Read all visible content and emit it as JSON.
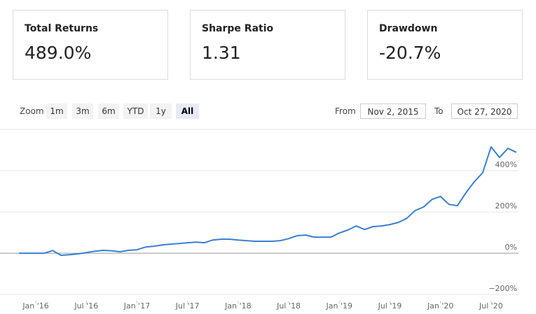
{
  "metrics": [
    {
      "label": "Total Returns",
      "value": "489.0%"
    },
    {
      "label": "Sharpe Ratio",
      "value": "1.31"
    },
    {
      "label": "Drawdown",
      "value": "-20.7%"
    }
  ],
  "toolbar": {
    "zoom_label": "Zoom",
    "zoom_buttons": [
      "1m",
      "3m",
      "6m",
      "YTD",
      "1y",
      "All"
    ],
    "selected_index": 5,
    "from_label": "From",
    "from_date": "Nov 2, 2015",
    "to_label": "To",
    "to_date": "Oct 27, 2020"
  },
  "chart_data": {
    "type": "line",
    "color": "#3a7fd5",
    "x": [
      "2015-11",
      "2015-12",
      "2016-01",
      "2016-02",
      "2016-03",
      "2016-04",
      "2016-05",
      "2016-06",
      "2016-07",
      "2016-08",
      "2016-09",
      "2016-10",
      "2016-11",
      "2016-12",
      "2017-01",
      "2017-02",
      "2017-03",
      "2017-04",
      "2017-05",
      "2017-06",
      "2017-07",
      "2017-08",
      "2017-09",
      "2017-10",
      "2017-11",
      "2017-12",
      "2018-01",
      "2018-02",
      "2018-03",
      "2018-04",
      "2018-05",
      "2018-06",
      "2018-07",
      "2018-08",
      "2018-09",
      "2018-10",
      "2018-11",
      "2018-12",
      "2019-01",
      "2019-02",
      "2019-03",
      "2019-04",
      "2019-05",
      "2019-06",
      "2019-07",
      "2019-08",
      "2019-09",
      "2019-10",
      "2019-11",
      "2019-12",
      "2020-01",
      "2020-02",
      "2020-03",
      "2020-04",
      "2020-05",
      "2020-06",
      "2020-07",
      "2020-08",
      "2020-09",
      "2020-10"
    ],
    "values": [
      0,
      0,
      0,
      0,
      13,
      -10,
      -7,
      -3,
      3,
      10,
      14,
      12,
      7,
      14,
      17,
      30,
      34,
      40,
      44,
      47,
      51,
      54,
      51,
      64,
      68,
      68,
      64,
      61,
      58,
      58,
      58,
      61,
      71,
      85,
      88,
      78,
      78,
      78,
      98,
      112,
      132,
      115,
      129,
      132,
      139,
      149,
      169,
      207,
      224,
      261,
      275,
      237,
      230,
      292,
      346,
      390,
      515,
      464,
      508,
      489
    ],
    "xlim": [
      "2015-11",
      "2020-10"
    ],
    "xticks": [
      {
        "value": "2016-01",
        "label": "Jan '16"
      },
      {
        "value": "2016-07",
        "label": "Jul '16"
      },
      {
        "value": "2017-01",
        "label": "Jan '17"
      },
      {
        "value": "2017-07",
        "label": "Jul '17"
      },
      {
        "value": "2018-01",
        "label": "Jan '18"
      },
      {
        "value": "2018-07",
        "label": "Jul '18"
      },
      {
        "value": "2019-01",
        "label": "Jan '19"
      },
      {
        "value": "2019-07",
        "label": "Jul '19"
      },
      {
        "value": "2020-01",
        "label": "Jan '20"
      },
      {
        "value": "2020-07",
        "label": "Jul '20"
      }
    ],
    "ylim": [
      -230,
      600
    ],
    "yticks": [
      {
        "value": -200,
        "label": "−200%"
      },
      {
        "value": 0,
        "label": "0%"
      },
      {
        "value": 200,
        "label": "200%"
      },
      {
        "value": 400,
        "label": "400%"
      }
    ],
    "grid": true
  }
}
